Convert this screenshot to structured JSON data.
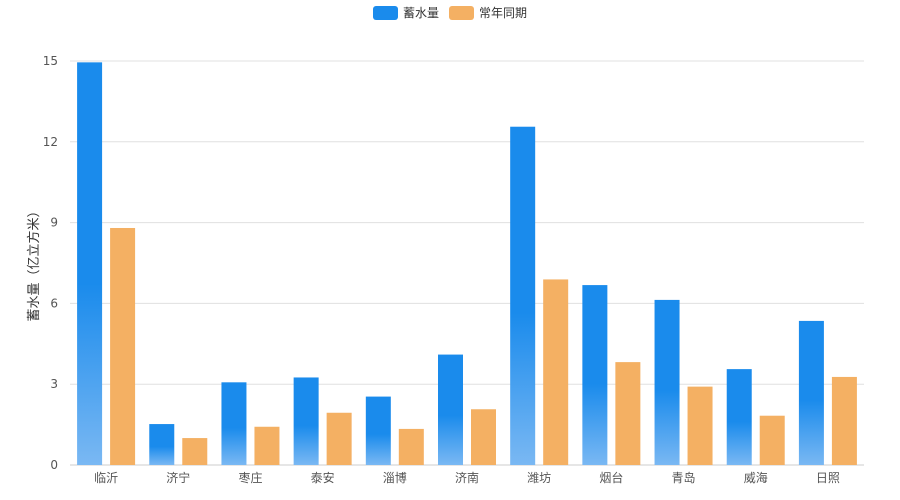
{
  "chart_data": {
    "type": "bar",
    "title": "",
    "xlabel": "",
    "ylabel": "蓄水量（亿立方米）",
    "ylim": [
      0,
      15
    ],
    "yticks": [
      0,
      3,
      6,
      9,
      12,
      15
    ],
    "grid": true,
    "legend_position": "top-center",
    "categories": [
      "临沂",
      "济宁",
      "枣庄",
      "泰安",
      "淄博",
      "济南",
      "潍坊",
      "烟台",
      "青岛",
      "威海",
      "日照"
    ],
    "series": [
      {
        "name": "蓄水量",
        "color": "#1a8bec",
        "color_light": "#7ab8f3",
        "values": [
          14.95,
          1.52,
          3.07,
          3.25,
          2.54,
          4.1,
          12.56,
          6.68,
          6.13,
          3.56,
          5.35
        ]
      },
      {
        "name": "常年同期",
        "color": "#f4b063",
        "values": [
          8.8,
          1.0,
          1.42,
          1.94,
          1.34,
          2.07,
          6.89,
          3.82,
          2.91,
          1.83,
          3.27
        ]
      }
    ]
  }
}
